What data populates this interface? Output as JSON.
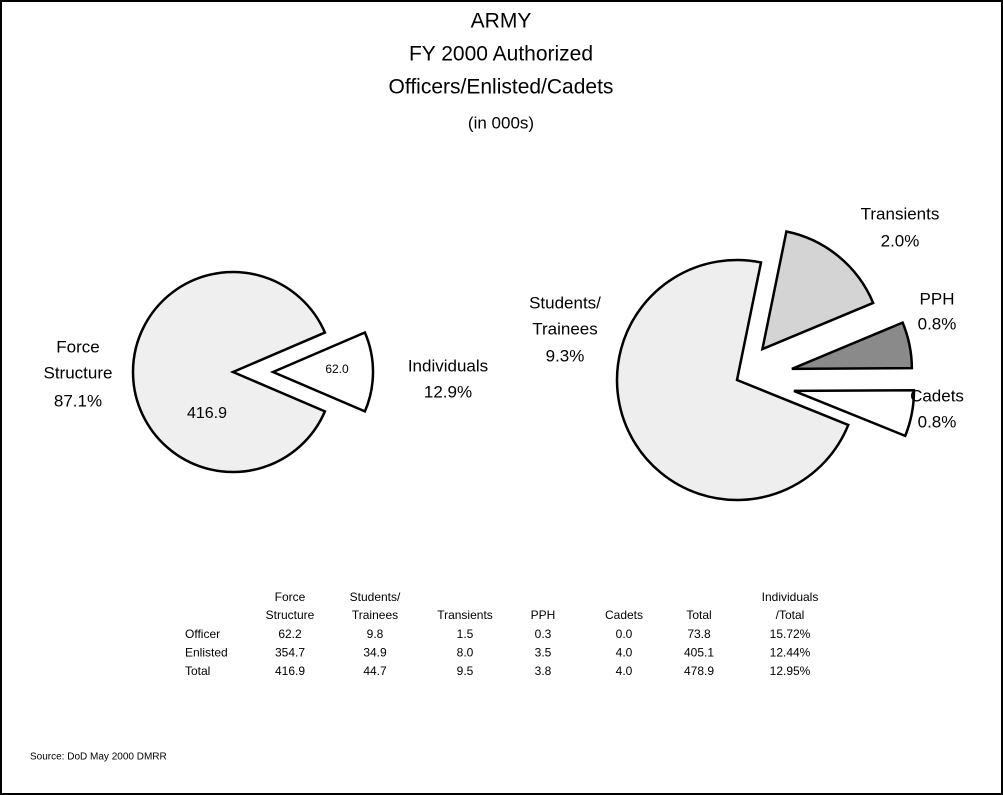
{
  "title_lines": [
    "ARMY",
    "FY 2000 Authorized",
    "Officers/Enlisted/Cadets"
  ],
  "subtitle": "(in 000s)",
  "chart_data": [
    {
      "type": "pie",
      "categories": [
        [
          "Force",
          "Structure"
        ],
        [
          "Individuals"
        ]
      ],
      "values": [
        87.1,
        12.9
      ],
      "value_labels": [
        "87.1%",
        "12.9%"
      ],
      "amount_labels": [
        "416.9",
        "62.0"
      ],
      "colors": [
        "#efefef",
        "#ffffff"
      ]
    },
    {
      "type": "pie",
      "categories": [
        [
          "Students/",
          "Trainees"
        ],
        [
          "Transients"
        ],
        [
          "PPH"
        ],
        [
          "Cadets"
        ]
      ],
      "values": [
        9.3,
        2.0,
        0.8,
        0.8
      ],
      "value_labels": [
        "9.3%",
        "2.0%",
        "0.8%",
        "0.8%"
      ],
      "colors": [
        "#eeeeee",
        "#d4d4d4",
        "#8a8a8a",
        "#ffffff"
      ]
    }
  ],
  "table": {
    "header": [
      [],
      [
        "Force",
        "Structure"
      ],
      [
        "Students/",
        "Trainees"
      ],
      [
        "Transients"
      ],
      [
        "PPH"
      ],
      [
        "Cadets"
      ],
      [
        "Total"
      ],
      [
        "Individuals",
        "/Total"
      ]
    ],
    "rows": [
      [
        "Officer",
        "62.2",
        "9.8",
        "1.5",
        "0.3",
        "0.0",
        "73.8",
        "15.72%"
      ],
      [
        "Enlisted",
        "354.7",
        "34.9",
        "8.0",
        "3.5",
        "4.0",
        "405.1",
        "12.44%"
      ],
      [
        "Total",
        "416.9",
        "44.7",
        "9.5",
        "3.8",
        "4.0",
        "478.9",
        "12.95%"
      ]
    ]
  },
  "source": "Source:  DoD May 2000 DMRR"
}
